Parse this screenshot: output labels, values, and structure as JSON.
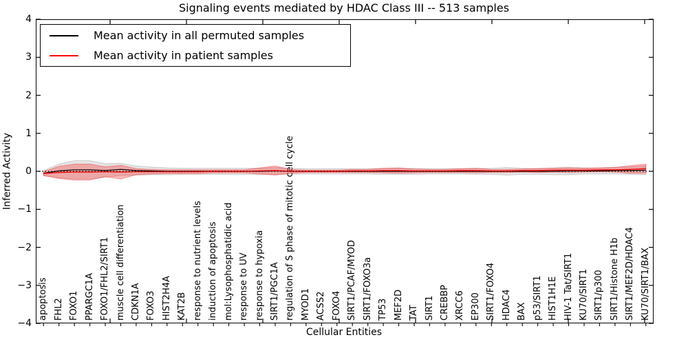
{
  "title": "Signaling events mediated by HDAC Class III -- 513 samples",
  "axes": {
    "ylabel": "Inferred Activity",
    "xlabel": "Cellular Entities",
    "yticks": [
      "4",
      "3",
      "2",
      "1",
      "0",
      "−1",
      "−2",
      "−3",
      "−4"
    ]
  },
  "legend": {
    "items": [
      {
        "label": "Mean activity in all permuted samples",
        "color": "#000000"
      },
      {
        "label": "Mean activity in patient samples",
        "color": "#ff0000"
      }
    ]
  },
  "chart_data": {
    "type": "line",
    "title": "Signaling events mediated by HDAC Class III -- 513 samples",
    "xlabel": "Cellular Entities",
    "ylabel": "Inferred Activity",
    "ylim": [
      -4,
      4
    ],
    "grid": false,
    "zero_line": "dotted",
    "legend_position": "upper left",
    "categories": [
      "apoptosis",
      "FHL2",
      "FOXO1",
      "PPARGC1A",
      "FOXO1/FHL2/SIRT1",
      "muscle cell differentiation",
      "CDKN1A",
      "FOXO3",
      "HIST2H4A",
      "KAT2B",
      "response to nutrient levels",
      "induction of apoptosis",
      "mol:Lysophosphatidic acid",
      "response to UV",
      "response to hypoxia",
      "SIRT1/PGC1A",
      "regulation of S phase of mitotic cell cycle",
      "MYOD1",
      "ACSS2",
      "FOXO4",
      "SIRT1/PCAF/MYOD",
      "SIRT1/FOXO3a",
      "TP53",
      "MEF2D",
      "TAT",
      "SIRT1",
      "CREBBP",
      "XRCC6",
      "EP300",
      "SIRT1/FOXO4",
      "HDAC4",
      "BAX",
      "p53/SIRT1",
      "HIST1H1E",
      "HIV-1 Tat/SIRT1",
      "KU70/SIRT1",
      "SIRT1/p300",
      "SIRT1/Histone H1b",
      "SIRT1/MEF2D/HDAC4",
      "KU70/SIRT1/BAX"
    ],
    "series": [
      {
        "name": "Mean activity in all permuted samples",
        "color": "#000000",
        "values": [
          -0.05,
          0.01,
          0.04,
          0.04,
          0.02,
          0.05,
          0.02,
          0.01,
          0,
          0,
          0,
          0,
          0,
          0,
          0,
          0.01,
          0,
          0,
          0,
          0,
          0,
          0,
          0,
          0,
          0,
          0,
          0,
          0,
          0,
          0,
          0,
          0,
          0,
          0,
          0.01,
          0.01,
          0.01,
          0.02,
          0.02,
          0.03
        ]
      },
      {
        "name": "Mean activity in patient samples",
        "color": "#ff0000",
        "values": [
          -0.06,
          -0.03,
          -0.02,
          -0.02,
          -0.01,
          -0.02,
          -0.01,
          -0.01,
          -0.01,
          -0.01,
          -0.01,
          0,
          0,
          0,
          0.01,
          0.02,
          0,
          0,
          0,
          0,
          0.01,
          0.01,
          0.02,
          0.02,
          0.01,
          0.01,
          0.01,
          0.02,
          0.02,
          0.01,
          0.01,
          0.02,
          0.02,
          0.03,
          0.03,
          0.03,
          0.04,
          0.04,
          0.05,
          0.07
        ]
      },
      {
        "name": "Permuted samples std band (half-width)",
        "color": "#aaaaaa",
        "band_around": 0,
        "values": [
          0.07,
          0.18,
          0.24,
          0.24,
          0.18,
          0.16,
          0.12,
          0.1,
          0.09,
          0.08,
          0.08,
          0.08,
          0.08,
          0.08,
          0.08,
          0.09,
          0.08,
          0.07,
          0.07,
          0.07,
          0.07,
          0.07,
          0.08,
          0.08,
          0.08,
          0.07,
          0.07,
          0.07,
          0.08,
          0.08,
          0.1,
          0.08,
          0.08,
          0.09,
          0.1,
          0.08,
          0.08,
          0.09,
          0.1,
          0.12
        ]
      },
      {
        "name": "Patient samples std band (half-width)",
        "color": "#ff0000",
        "band_around": 1,
        "values": [
          0.05,
          0.16,
          0.21,
          0.21,
          0.13,
          0.18,
          0.08,
          0.06,
          0.05,
          0.05,
          0.05,
          0.04,
          0.04,
          0.04,
          0.08,
          0.12,
          0.05,
          0.03,
          0.03,
          0.03,
          0.04,
          0.04,
          0.06,
          0.07,
          0.05,
          0.04,
          0.04,
          0.05,
          0.06,
          0.04,
          0.04,
          0.04,
          0.05,
          0.05,
          0.06,
          0.05,
          0.05,
          0.06,
          0.1,
          0.12
        ]
      }
    ]
  }
}
